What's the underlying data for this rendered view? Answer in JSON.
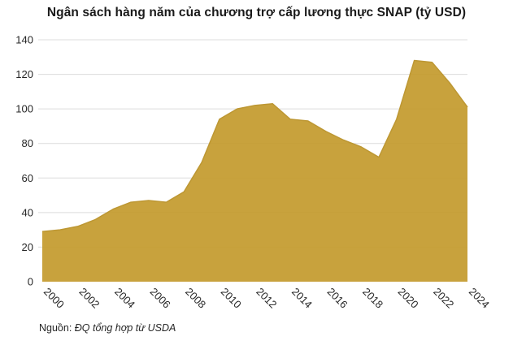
{
  "title": "Ngân sách hàng năm của chương trợ cấp lương thực SNAP (tỷ USD)",
  "source": {
    "prefix": "Nguồn: ",
    "text": "ĐQ tổng hợp từ USDA"
  },
  "colors": {
    "area_fill": "#C29828",
    "area_stroke": "#BD9733",
    "gridline": "#dcdcdc",
    "title_text": "#1a1a1a",
    "tick_text": "#262626"
  },
  "chart_data": {
    "type": "area",
    "title": "Ngân sách hàng năm của chương trợ cấp lương thực SNAP (tỷ USD)",
    "xlabel": "",
    "ylabel": "",
    "x": [
      2000,
      2001,
      2002,
      2003,
      2004,
      2005,
      2006,
      2007,
      2008,
      2009,
      2010,
      2011,
      2012,
      2013,
      2014,
      2015,
      2016,
      2017,
      2018,
      2019,
      2020,
      2021,
      2022,
      2023,
      2024
    ],
    "values": [
      29,
      30,
      32,
      36,
      42,
      46,
      47,
      46,
      52,
      69,
      94,
      100,
      102,
      103,
      94,
      93,
      87,
      82,
      78,
      72,
      94,
      128,
      127,
      115,
      101
    ],
    "ylim": [
      0,
      140
    ],
    "y_ticks": [
      0,
      20,
      40,
      60,
      80,
      100,
      120,
      140
    ],
    "x_tick_labels": [
      "2000",
      "2002",
      "2004",
      "2006",
      "2008",
      "2010",
      "2012",
      "2014",
      "2016",
      "2018",
      "2020",
      "2022",
      "2024"
    ],
    "grid": true,
    "legend": false,
    "source_note": "Nguồn: ĐQ tổng hợp từ USDA"
  }
}
